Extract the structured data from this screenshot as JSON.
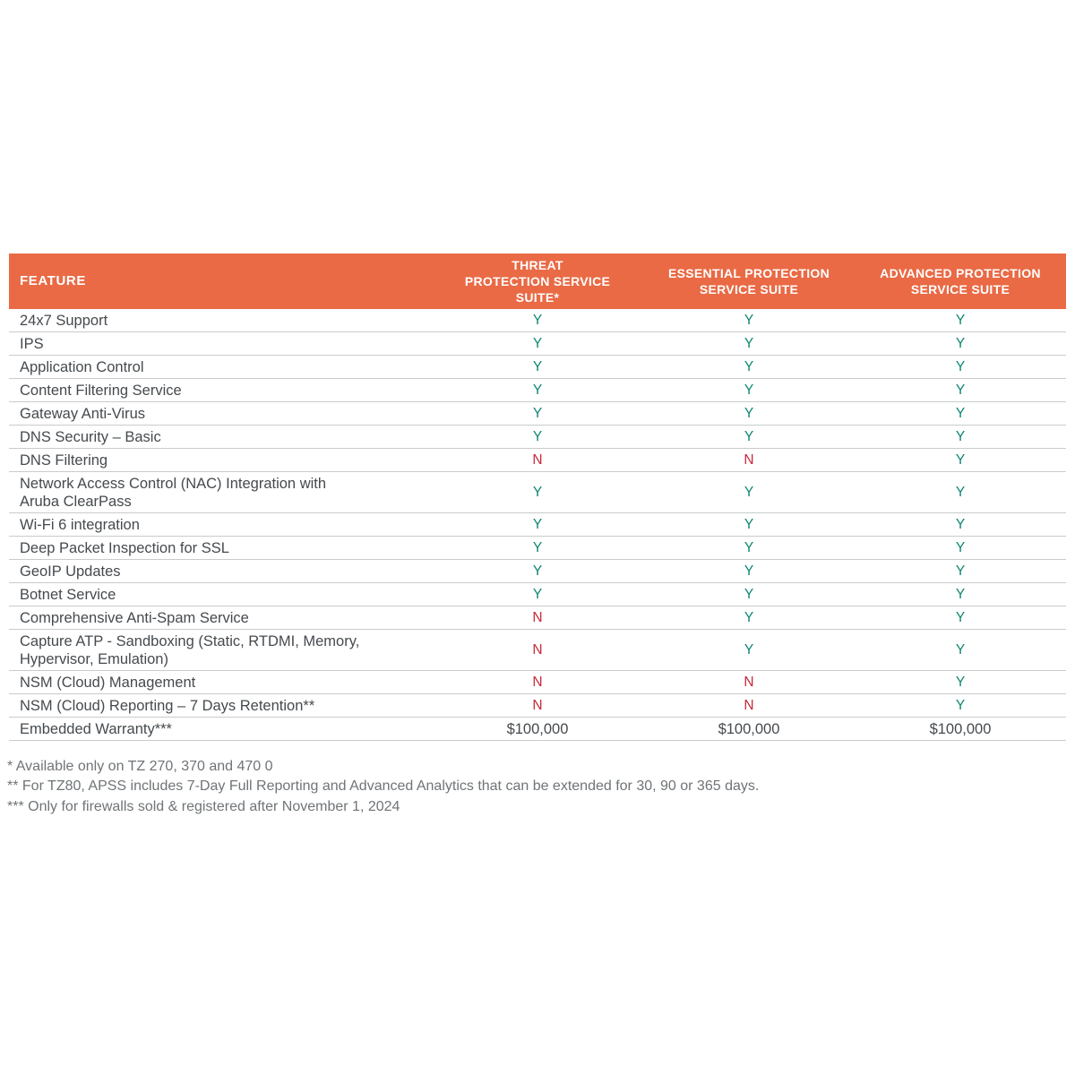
{
  "colors": {
    "header_bg": "#E96A45",
    "header_text": "#FFFFFF",
    "yes": "#0E8673",
    "no": "#C52A39",
    "row_text": "#454A4E",
    "divider": "#C9CCCB",
    "footnote_text": "#6F7477"
  },
  "table": {
    "columns": [
      {
        "id": "feature",
        "label": "FEATURE"
      },
      {
        "id": "threat",
        "label": "THREAT\nPROTECTION SERVICE\nSUITE*"
      },
      {
        "id": "essential",
        "label": "ESSENTIAL PROTECTION\nSERVICE SUITE"
      },
      {
        "id": "advanced",
        "label": "ADVANCED PROTECTION\nSERVICE SUITE"
      }
    ],
    "rows": [
      {
        "feature": "24x7 Support",
        "values": [
          "Y",
          "Y",
          "Y"
        ]
      },
      {
        "feature": "IPS",
        "values": [
          "Y",
          "Y",
          "Y"
        ]
      },
      {
        "feature": "Application Control",
        "values": [
          "Y",
          "Y",
          "Y"
        ]
      },
      {
        "feature": "Content Filtering Service",
        "values": [
          "Y",
          "Y",
          "Y"
        ]
      },
      {
        "feature": "Gateway Anti-Virus",
        "values": [
          "Y",
          "Y",
          "Y"
        ]
      },
      {
        "feature": "DNS Security – Basic",
        "values": [
          "Y",
          "Y",
          "Y"
        ]
      },
      {
        "feature": "DNS Filtering",
        "values": [
          "N",
          "N",
          "Y"
        ]
      },
      {
        "feature": "Network Access Control (NAC) Integration with\nAruba ClearPass",
        "values": [
          "Y",
          "Y",
          "Y"
        ]
      },
      {
        "feature": "Wi-Fi 6 integration",
        "values": [
          "Y",
          "Y",
          "Y"
        ]
      },
      {
        "feature": "Deep Packet Inspection for SSL",
        "values": [
          "Y",
          "Y",
          "Y"
        ]
      },
      {
        "feature": "GeoIP Updates",
        "values": [
          "Y",
          "Y",
          "Y"
        ]
      },
      {
        "feature": "Botnet Service",
        "values": [
          "Y",
          "Y",
          "Y"
        ]
      },
      {
        "feature": "Comprehensive Anti-Spam Service",
        "values": [
          "N",
          "Y",
          "Y"
        ]
      },
      {
        "feature": "Capture ATP -  Sandboxing (Static, RTDMI, Memory,\nHypervisor, Emulation)",
        "values": [
          "N",
          "Y",
          "Y"
        ]
      },
      {
        "feature": "NSM (Cloud) Management",
        "values": [
          "N",
          "N",
          "Y"
        ]
      },
      {
        "feature": "NSM (Cloud) Reporting – 7 Days Retention**",
        "values": [
          "N",
          "N",
          "Y"
        ]
      },
      {
        "feature": "Embedded Warranty***",
        "values": [
          "$100,000",
          "$100,000",
          "$100,000"
        ]
      }
    ]
  },
  "footnotes": [
    "* Available only on TZ 270, 370 and 470 0",
    "** For TZ80, APSS includes 7-Day Full Reporting and Advanced Analytics that can be extended for 30, 90 or 365 days.",
    "*** Only for firewalls sold & registered after November 1, 2024"
  ]
}
